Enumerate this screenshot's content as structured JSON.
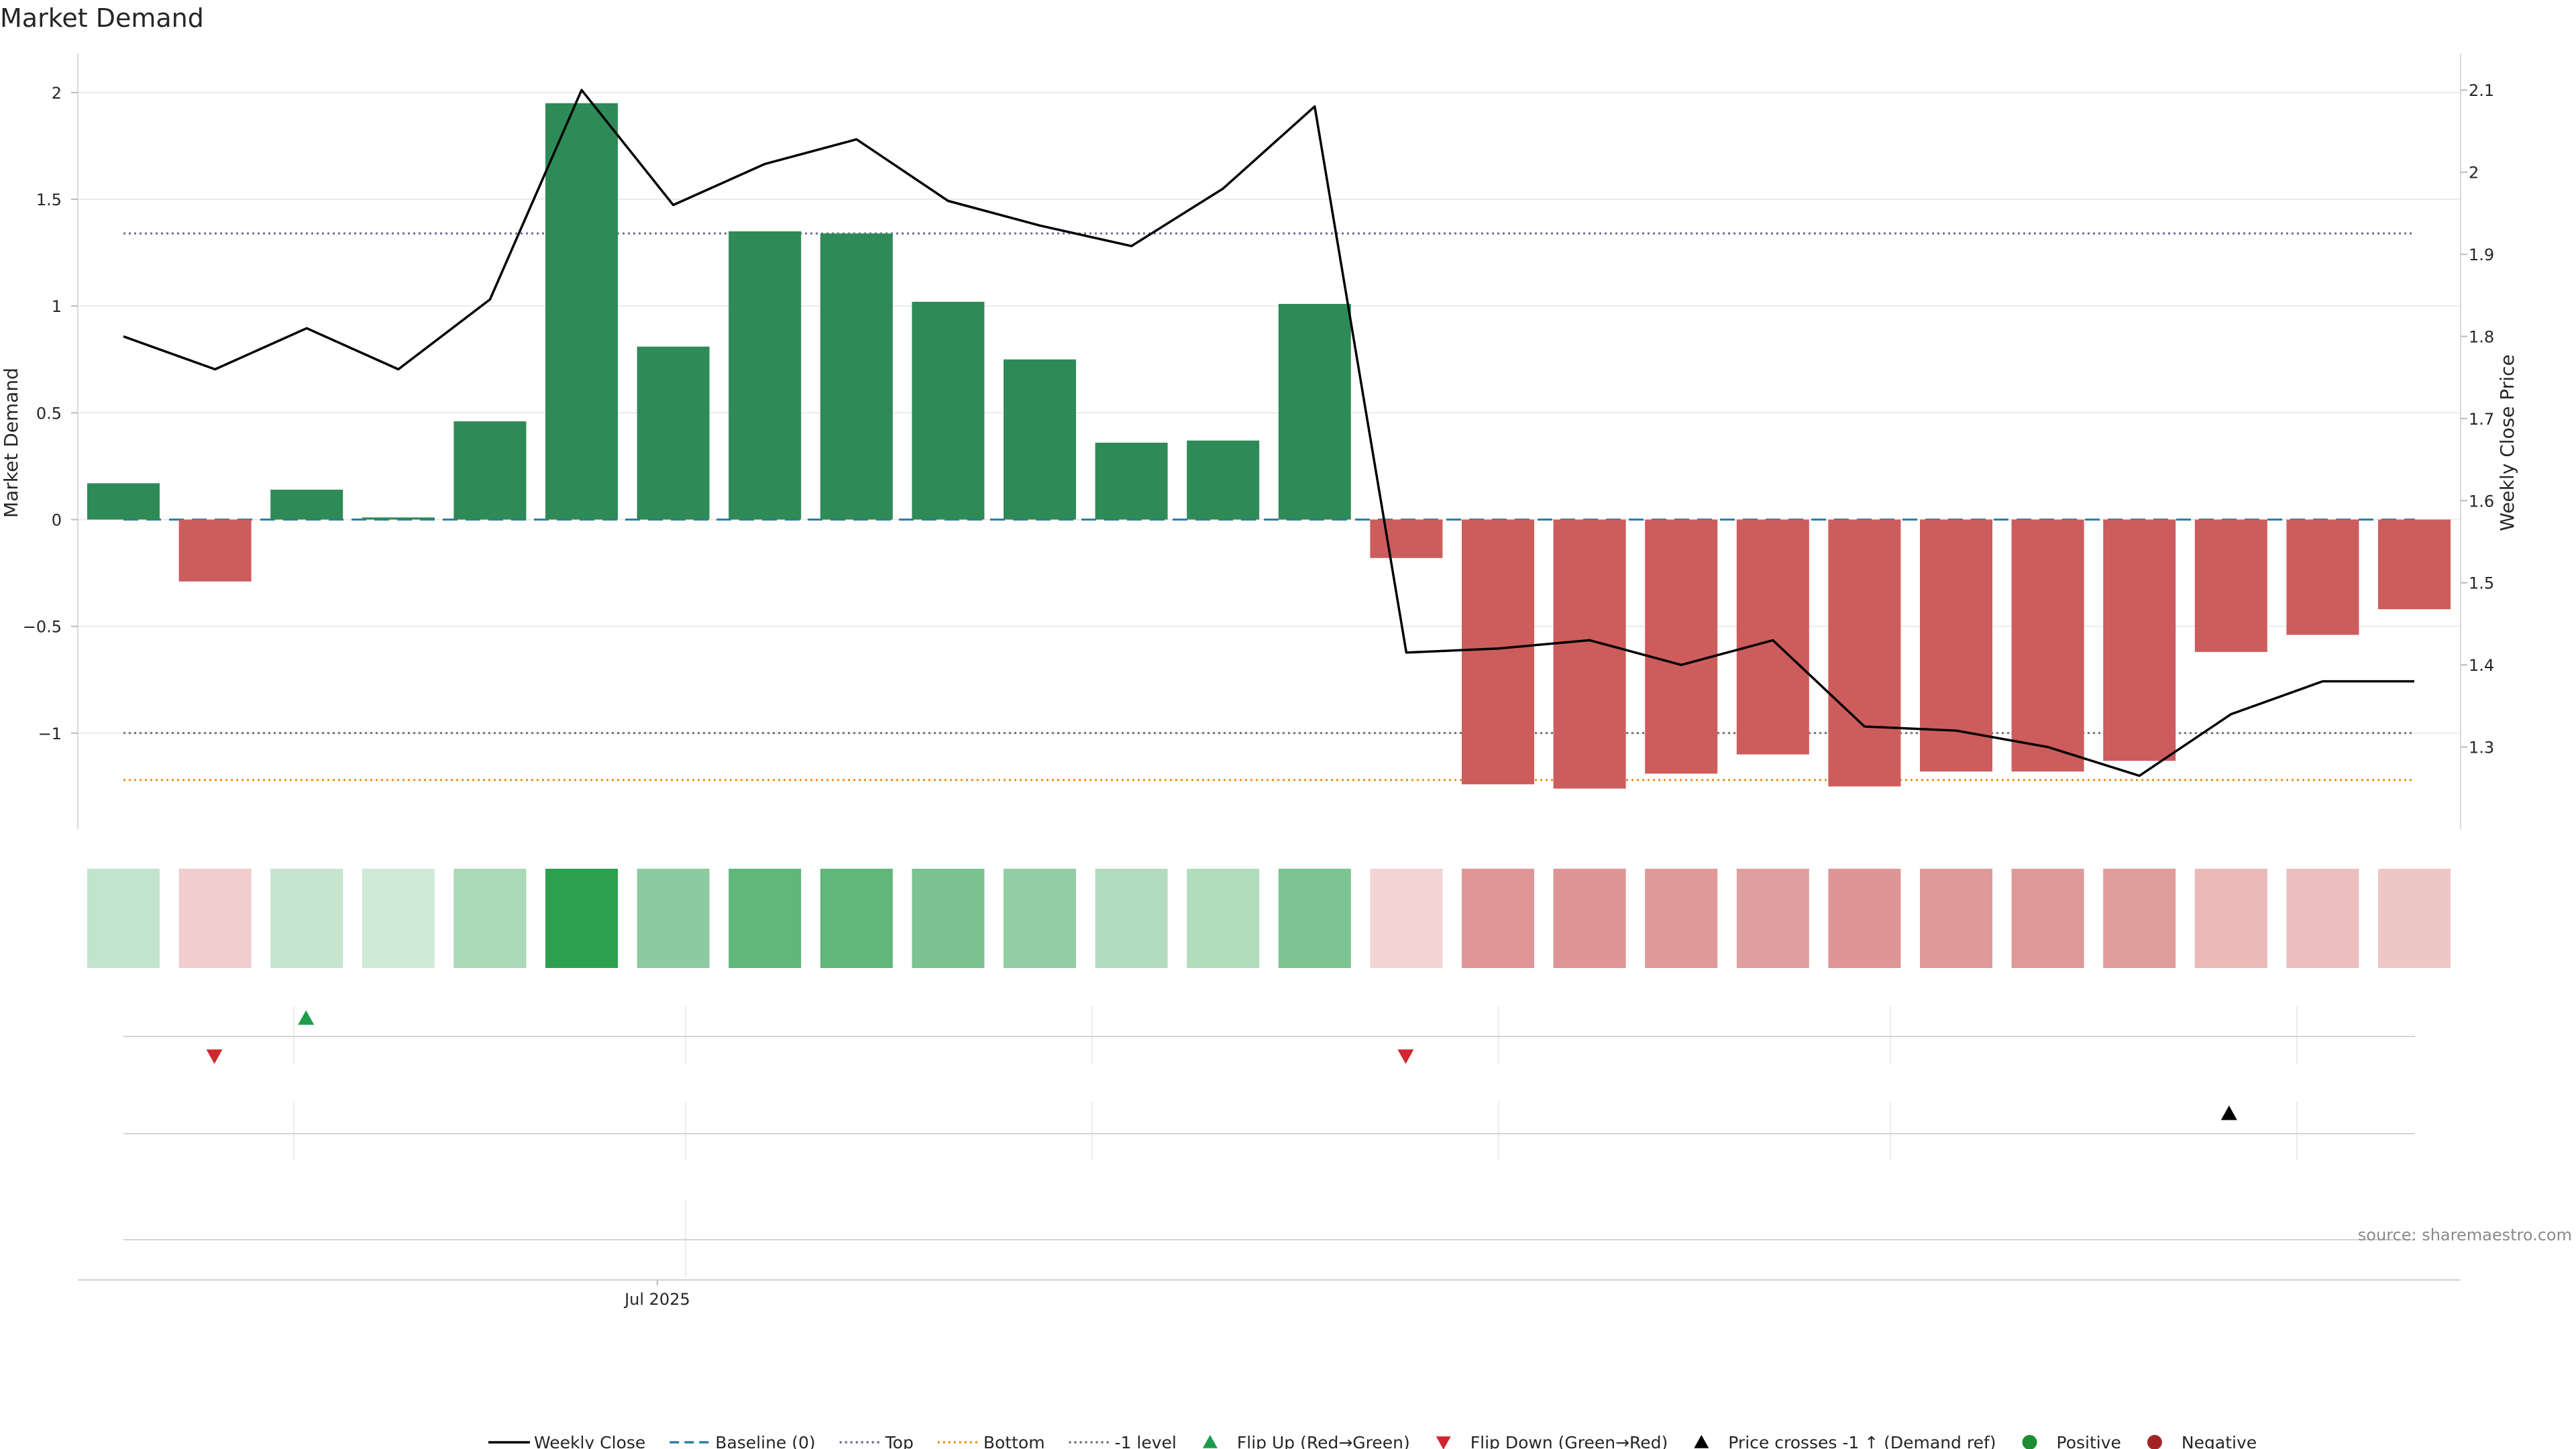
{
  "chart_data": {
    "type": "bar",
    "title": "Market Demand",
    "ylabel_left": "Market Demand",
    "ylabel_right": "Weekly Close Price",
    "xtick_labels": [
      {
        "index": 6.5,
        "label": "Jul 2025"
      }
    ],
    "ylim_left": [
      -1.45,
      2.05
    ],
    "ylim_right": [
      1.2,
      2.11
    ],
    "yticks_left": [
      {
        "value": 2,
        "label": "2"
      },
      {
        "value": 1.5,
        "label": "1.5"
      },
      {
        "value": 1,
        "label": "1"
      },
      {
        "value": 0.5,
        "label": "0.5"
      },
      {
        "value": 0,
        "label": "0"
      },
      {
        "value": -0.5,
        "label": "−0.5"
      },
      {
        "value": -1,
        "label": "−1"
      }
    ],
    "yticks_right": [
      {
        "value": 2.1,
        "label": "2.1"
      },
      {
        "value": 2.0,
        "label": "2"
      },
      {
        "value": 1.9,
        "label": "1.9"
      },
      {
        "value": 1.8,
        "label": "1.8"
      },
      {
        "value": 1.7,
        "label": "1.7"
      },
      {
        "value": 1.6,
        "label": "1.6"
      },
      {
        "value": 1.5,
        "label": "1.5"
      },
      {
        "value": 1.4,
        "label": "1.4"
      },
      {
        "value": 1.3,
        "label": "1.3"
      }
    ],
    "demand": [
      0.17,
      -0.29,
      0.14,
      0.01,
      0.46,
      1.95,
      0.81,
      1.35,
      1.34,
      1.02,
      0.75,
      0.36,
      0.37,
      1.01,
      -0.18,
      -1.24,
      -1.26,
      -1.19,
      -1.1,
      -1.25,
      -1.18,
      -1.18,
      -1.13,
      -0.62,
      -0.54,
      -0.42
    ],
    "weekly_close": [
      1.8,
      1.76,
      1.81,
      1.76,
      1.845,
      2.1,
      1.96,
      2.01,
      2.04,
      1.965,
      1.935,
      1.91,
      1.98,
      2.08,
      1.415,
      1.42,
      1.43,
      1.4,
      1.43,
      1.325,
      1.32,
      1.3,
      1.265,
      1.34,
      1.38,
      1.38
    ],
    "reference_lines": {
      "baseline": 0,
      "top": 1.34,
      "bottom": -1.22,
      "minus_one": -1
    },
    "flip_up_indices": [
      2
    ],
    "flip_down_indices": [
      1,
      14
    ],
    "price_cross_indices": [
      23
    ],
    "colors": {
      "positive": "#2e8b57",
      "negative": "#cd5c5c",
      "line": "#000000",
      "baseline": "#2b7fa6",
      "top": "#6a6a9a",
      "bottom": "#f08c1c",
      "minus_one": "#707070",
      "flip_up": "#1e9b4b",
      "flip_down": "#d0272f",
      "cross": "#000000",
      "positive_dot": "#1e8c32",
      "negative_dot": "#a32424",
      "heat_pos": "#2ca04f",
      "heat_neg": "#cd5c5c"
    },
    "legend": [
      {
        "label": "Weekly Close",
        "kind": "line-solid"
      },
      {
        "label": "Baseline (0)",
        "kind": "line-dash"
      },
      {
        "label": "Top",
        "kind": "line-dot-top"
      },
      {
        "label": "Bottom",
        "kind": "line-dot-bottom"
      },
      {
        "label": "-1 level",
        "kind": "line-dot-minus"
      },
      {
        "label": "Flip Up (Red→Green)",
        "kind": "tri-up-green"
      },
      {
        "label": "Flip Down (Green→Red)",
        "kind": "tri-down-red"
      },
      {
        "label": "Price crosses -1 ↑ (Demand ref)",
        "kind": "tri-up-black"
      },
      {
        "label": "Positive",
        "kind": "dot-pos"
      },
      {
        "label": "Negative",
        "kind": "dot-neg"
      }
    ],
    "source": "source: sharemaestro.com"
  }
}
